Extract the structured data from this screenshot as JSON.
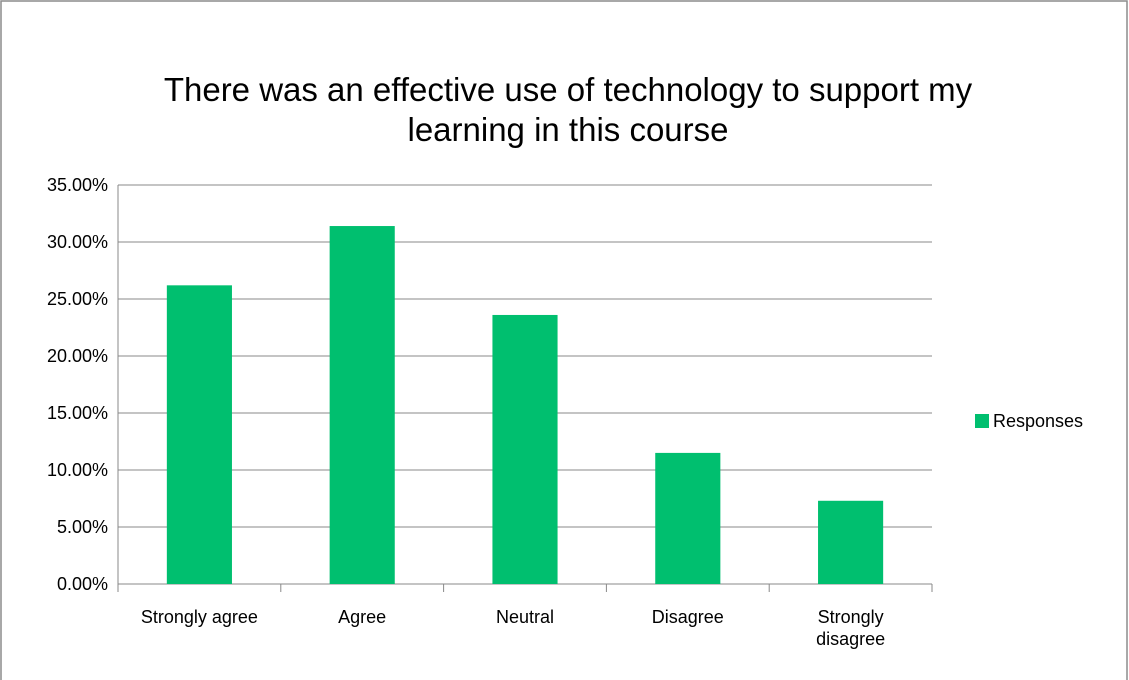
{
  "chart_data": {
    "type": "bar",
    "title": "There was an effective use of technology to support my learning in this course",
    "categories": [
      "Strongly agree",
      "Agree",
      "Neutral",
      "Disagree",
      "Strongly disagree"
    ],
    "series": [
      {
        "name": "Responses",
        "color": "#00bf6f",
        "values": [
          26.2,
          31.4,
          23.6,
          11.5,
          7.3
        ]
      }
    ],
    "ylim": [
      0,
      35
    ],
    "yticks": [
      {
        "value": 0,
        "label": "0.00%"
      },
      {
        "value": 5,
        "label": "5.00%"
      },
      {
        "value": 10,
        "label": "10.00%"
      },
      {
        "value": 15,
        "label": "15.00%"
      },
      {
        "value": 20,
        "label": "20.00%"
      },
      {
        "value": 25,
        "label": "25.00%"
      },
      {
        "value": 30,
        "label": "30.00%"
      },
      {
        "value": 35,
        "label": "35.00%"
      }
    ],
    "grid": true,
    "legend": "right"
  }
}
